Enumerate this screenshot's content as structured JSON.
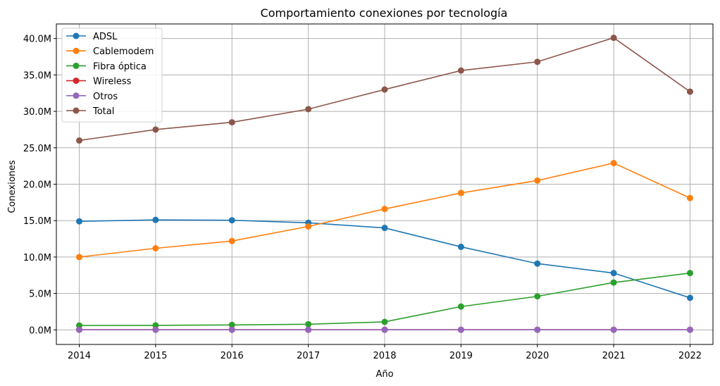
{
  "chart_data": {
    "type": "line",
    "title": "Comportamiento conexiones por tecnología",
    "xlabel": "Año",
    "ylabel": "Conexiones",
    "x": [
      2014,
      2015,
      2016,
      2017,
      2018,
      2019,
      2020,
      2021,
      2022
    ],
    "xlim": [
      2013.7,
      2022.3
    ],
    "ylim": [
      -2.0,
      42.0
    ],
    "yticks": [
      0,
      5,
      10,
      15,
      20,
      25,
      30,
      35,
      40
    ],
    "ytick_labels": [
      "0.0M",
      "5.0M",
      "10.0M",
      "15.0M",
      "20.0M",
      "25.0M",
      "30.0M",
      "35.0M",
      "40.0M"
    ],
    "y_unit": "millones de conexiones",
    "grid": true,
    "legend_position": "top-left",
    "series": [
      {
        "name": "ADSL",
        "color": "#1f77b4",
        "values": [
          14.9,
          15.1,
          15.05,
          14.7,
          14.0,
          11.4,
          9.1,
          7.8,
          4.4
        ]
      },
      {
        "name": "Cablemodem",
        "color": "#ff7f0e",
        "values": [
          10.0,
          11.2,
          12.2,
          14.2,
          16.6,
          18.8,
          20.5,
          22.9,
          18.1
        ]
      },
      {
        "name": "Fibra óptica",
        "color": "#2ca02c",
        "values": [
          0.6,
          0.62,
          0.68,
          0.77,
          1.1,
          3.2,
          4.6,
          6.5,
          7.8
        ]
      },
      {
        "name": "Wireless",
        "color": "#d62728",
        "values": [
          0.02,
          0.02,
          0.02,
          0.02,
          0.02,
          0.02,
          0.02,
          0.02,
          0.02
        ]
      },
      {
        "name": "Otros",
        "color": "#9467bd",
        "values": [
          0.01,
          0.01,
          0.01,
          0.01,
          0.01,
          0.01,
          0.01,
          0.01,
          0.01
        ]
      },
      {
        "name": "Total",
        "color": "#8c564b",
        "values": [
          26.0,
          27.5,
          28.5,
          30.3,
          33.0,
          35.6,
          36.8,
          40.1,
          32.7
        ]
      }
    ]
  }
}
